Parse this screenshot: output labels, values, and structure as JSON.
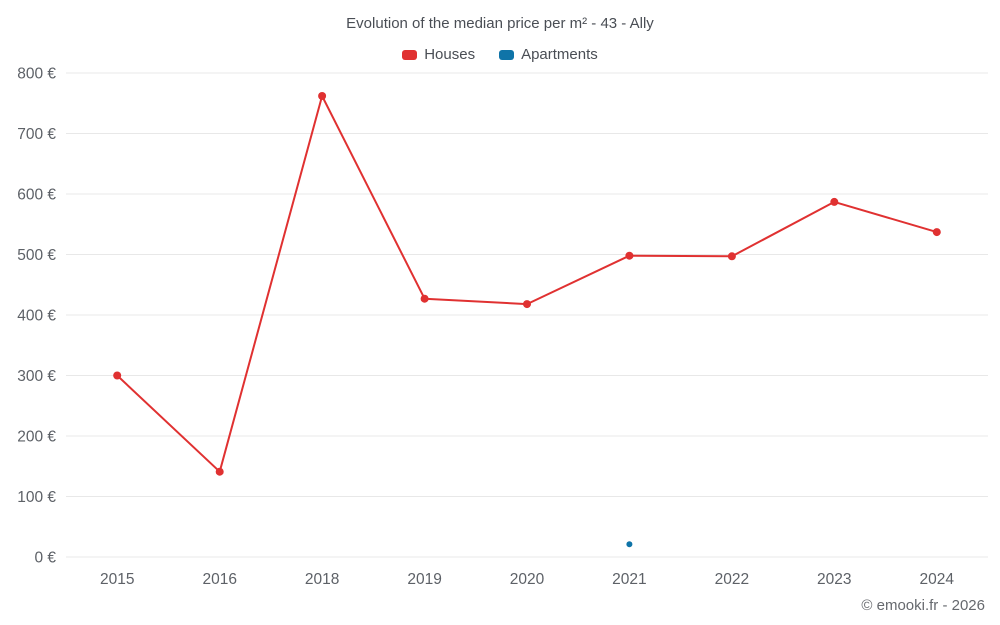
{
  "title": "Evolution of the median price per m² - 43 - Ally",
  "footer": "© emooki.fr - 2026",
  "colors": {
    "houses": "#e03131",
    "apartments": "#0f74a8",
    "grid": "#e8e8e8",
    "tick_text": "#5d6167",
    "title_text": "#4a4e55",
    "footer_text": "#66696e"
  },
  "chart_data": {
    "type": "line",
    "title": "Evolution of the median price per m² - 43 - Ally",
    "categories": [
      "2015",
      "2016",
      "2018",
      "2019",
      "2020",
      "2021",
      "2022",
      "2023",
      "2024"
    ],
    "series": [
      {
        "name": "Houses",
        "color": "#e03131",
        "marker_radius": 4,
        "values": [
          300,
          141,
          762,
          427,
          418,
          498,
          497,
          587,
          537
        ]
      },
      {
        "name": "Apartments",
        "color": "#0f74a8",
        "marker_radius": 3,
        "values": [
          null,
          null,
          null,
          null,
          null,
          21,
          null,
          null,
          null
        ]
      }
    ],
    "xlabel": "",
    "ylabel": "",
    "ylim": [
      0,
      800
    ],
    "ytick_step": 100,
    "ytick_suffix": " €",
    "grid": "horizontal",
    "legend_position": "top",
    "credit": "© emooki.fr - 2026"
  }
}
